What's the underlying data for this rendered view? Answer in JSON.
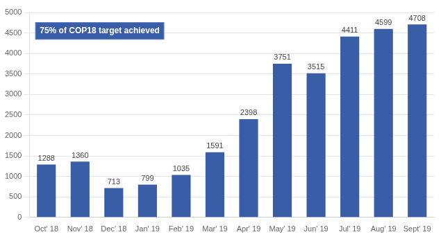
{
  "chart_data": {
    "type": "bar",
    "categories": [
      "Oct' 18",
      "Nov' 18",
      "Dec' 18",
      "Jan' 19",
      "Feb' 19",
      "Mar' 19",
      "Apr' 19",
      "May' 19",
      "Jun' 19",
      "Jul' 19",
      "Aug' 19",
      "Sept' 19"
    ],
    "values": [
      1288,
      1360,
      713,
      799,
      1035,
      1591,
      2398,
      3751,
      3515,
      4411,
      4599,
      4708
    ],
    "color": "#3A5DA8",
    "ylim": [
      0,
      5000
    ],
    "yticks": [
      0,
      500,
      1000,
      1500,
      2000,
      2500,
      3000,
      3500,
      4000,
      4500,
      5000
    ],
    "grid": true,
    "data_labels": true,
    "annotation": "75% of COP18 target achieved"
  }
}
